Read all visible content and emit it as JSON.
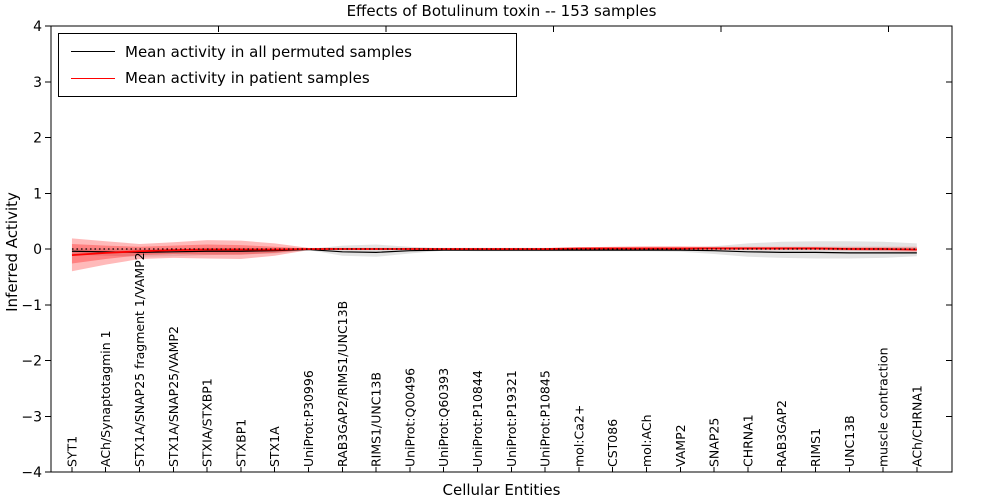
{
  "chart_data": {
    "type": "line",
    "title": "Effects of Botulinum toxin -- 153 samples",
    "xlabel": "Cellular Entities",
    "ylabel": "Inferred Activity",
    "ylim": [
      -4,
      4
    ],
    "xlim": [
      -0.62,
      26.04
    ],
    "top_axis_xlim": [
      0,
      26.9
    ],
    "top_axis_ticks": [
      5,
      10,
      15,
      20,
      25
    ],
    "ytick_labels": [
      "4",
      "3",
      "2",
      "1",
      "0",
      "−1",
      "−2",
      "−3",
      "−4"
    ],
    "ytick_values": [
      4,
      3,
      2,
      1,
      0,
      -1,
      -2,
      -3,
      -4
    ],
    "grid": false,
    "legend_position": "upper-left",
    "zero_line": {
      "style": "dotted",
      "color": "#000000",
      "value": 0
    },
    "categories": [
      "SYT1",
      "ACh/Synaptotagmin 1",
      "STX1A/SNAP25 fragment 1/VAMP2",
      "STX1A/SNAP25/VAMP2",
      "STXIA/STXBP1",
      "STXBP1",
      "STX1A",
      "UniProt:P30996",
      "RAB3GAP2/RIMS1/UNC13B",
      "RIMS1/UNC13B",
      "UniProt:Q00496",
      "UniProt:Q60393",
      "UniProt:P10844",
      "UniProt:P19321",
      "UniProt:P10845",
      "mol:Ca2+",
      "CST086",
      "mol:ACh",
      "VAMP2",
      "SNAP25",
      "CHRNA1",
      "RAB3GAP2",
      "RIMS1",
      "UNC13B",
      "muscle contraction",
      "ACh/CHRNA1"
    ],
    "series": [
      {
        "name": "Mean activity in all permuted samples",
        "color": "#000000",
        "band_color": "rgba(0,0,0,0.11)",
        "mean": [
          -0.04,
          -0.05,
          -0.06,
          -0.05,
          -0.04,
          -0.04,
          -0.03,
          -0.01,
          -0.05,
          -0.06,
          -0.03,
          -0.02,
          -0.02,
          -0.02,
          -0.02,
          -0.02,
          -0.02,
          -0.02,
          -0.02,
          -0.03,
          -0.05,
          -0.06,
          -0.06,
          -0.07,
          -0.07,
          -0.07
        ],
        "band_upper": [
          0.01,
          0.01,
          0.0,
          0.01,
          0.02,
          0.02,
          0.01,
          0.0,
          0.06,
          0.08,
          0.04,
          0.01,
          0.01,
          0.01,
          0.01,
          0.01,
          0.01,
          0.01,
          0.02,
          0.05,
          0.1,
          0.13,
          0.14,
          0.14,
          0.13,
          0.1
        ],
        "band_lower": [
          -0.1,
          -0.12,
          -0.14,
          -0.13,
          -0.11,
          -0.1,
          -0.08,
          -0.02,
          -0.12,
          -0.14,
          -0.08,
          -0.03,
          -0.04,
          -0.04,
          -0.04,
          -0.04,
          -0.04,
          -0.04,
          -0.05,
          -0.09,
          -0.14,
          -0.16,
          -0.17,
          -0.17,
          -0.16,
          -0.13
        ]
      },
      {
        "name": "Mean activity in patient samples",
        "color": "#ff0000",
        "band_color": "rgba(255,0,0,0.27)",
        "inner_band_color": "rgba(255,0,0,0.30)",
        "mean": [
          -0.11,
          -0.07,
          -0.04,
          -0.02,
          -0.01,
          -0.01,
          -0.01,
          0.0,
          0.0,
          0.0,
          0.0,
          0.0,
          0.0,
          0.0,
          0.0,
          0.01,
          0.01,
          0.01,
          0.01,
          0.01,
          0.01,
          0.01,
          0.01,
          0.0,
          0.0,
          -0.01
        ],
        "band_upper": [
          0.19,
          0.14,
          0.09,
          0.12,
          0.16,
          0.15,
          0.1,
          0.02,
          0.02,
          0.02,
          0.02,
          0.02,
          0.02,
          0.02,
          0.02,
          0.03,
          0.04,
          0.05,
          0.05,
          0.04,
          0.04,
          0.04,
          0.04,
          0.04,
          0.04,
          0.04
        ],
        "band_lower": [
          -0.4,
          -0.28,
          -0.18,
          -0.16,
          -0.17,
          -0.18,
          -0.12,
          -0.02,
          -0.02,
          -0.02,
          -0.02,
          -0.02,
          -0.02,
          -0.02,
          -0.02,
          -0.02,
          -0.02,
          -0.02,
          -0.02,
          -0.02,
          -0.02,
          -0.02,
          -0.02,
          -0.03,
          -0.04,
          -0.05
        ],
        "inner_band_upper": [
          0.09,
          0.06,
          0.04,
          0.06,
          0.08,
          0.07,
          0.04,
          0.01,
          0.0,
          0.0,
          0.0,
          0.0,
          0.0,
          0.0,
          0.0,
          0.01,
          0.01,
          0.01,
          0.01,
          0.01,
          0.01,
          0.01,
          0.01,
          0.01,
          0.01,
          0.01
        ],
        "inner_band_lower": [
          -0.26,
          -0.18,
          -0.11,
          -0.09,
          -0.1,
          -0.1,
          -0.07,
          -0.01,
          0.0,
          0.0,
          0.0,
          0.0,
          0.0,
          0.0,
          0.0,
          0.0,
          0.0,
          0.0,
          0.0,
          0.0,
          0.0,
          0.0,
          0.0,
          -0.01,
          -0.01,
          -0.02
        ]
      }
    ]
  }
}
